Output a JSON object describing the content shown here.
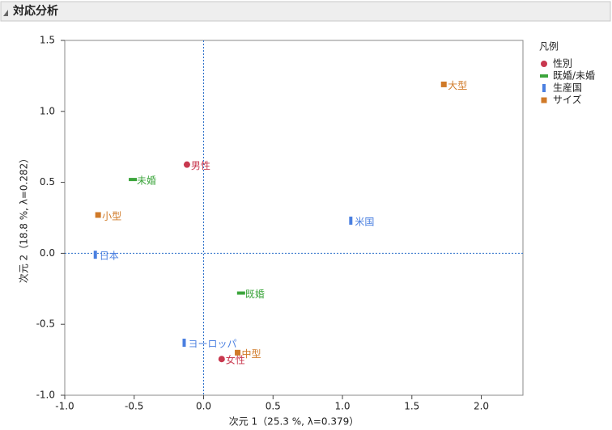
{
  "chart_data": {
    "type": "scatter",
    "title": "対応分析",
    "xlabel": "次元 1（25.3 %, λ=0.379）",
    "ylabel": "次元 2（18.8 %, λ=0.282）",
    "xlim": [
      -1.0,
      2.3
    ],
    "ylim": [
      -1.0,
      1.5
    ],
    "xticks": [
      {
        "value": -1,
        "label": "-1.0"
      },
      {
        "value": -0.5,
        "label": "-0.5"
      },
      {
        "value": 0,
        "label": "0.0"
      },
      {
        "value": 0.5,
        "label": "0.5"
      },
      {
        "value": 1,
        "label": "1.0"
      },
      {
        "value": 1.5,
        "label": "1.5"
      },
      {
        "value": 2,
        "label": "2.0"
      }
    ],
    "yticks": [
      {
        "value": -1,
        "label": "-1.0"
      },
      {
        "value": -0.5,
        "label": "-0.5"
      },
      {
        "value": 0,
        "label": "0.0"
      },
      {
        "value": 0.5,
        "label": "0.5"
      },
      {
        "value": 1,
        "label": "1.0"
      },
      {
        "value": 1.5,
        "label": "1.5"
      }
    ],
    "reference_lines": true,
    "reference_color": "#2a6fc9",
    "legend_title": "凡例",
    "legend": "right",
    "series": [
      {
        "name": "性別",
        "color": "#c8384f",
        "marker": "circle",
        "labels": [
          "男性",
          "女性"
        ],
        "x": [
          -0.12,
          0.13
        ],
        "y": [
          0.625,
          -0.745
        ]
      },
      {
        "name": "既婚/未婚",
        "color": "#3ca53c",
        "marker": "hbar",
        "labels": [
          "未婚",
          "既婚"
        ],
        "x": [
          -0.51,
          0.27
        ],
        "y": [
          0.52,
          -0.28
        ]
      },
      {
        "name": "生産国",
        "color": "#4a7fe0",
        "marker": "vbar",
        "labels": [
          "日本",
          "米国",
          "ヨーロッパ"
        ],
        "x": [
          -0.78,
          1.06,
          -0.14
        ],
        "y": [
          -0.01,
          0.23,
          -0.63
        ]
      },
      {
        "name": "サイズ",
        "color": "#d07a28",
        "marker": "square",
        "labels": [
          "大型",
          "小型",
          "中型"
        ],
        "x": [
          1.73,
          -0.76,
          0.245
        ],
        "y": [
          1.19,
          0.27,
          -0.7
        ]
      }
    ]
  }
}
